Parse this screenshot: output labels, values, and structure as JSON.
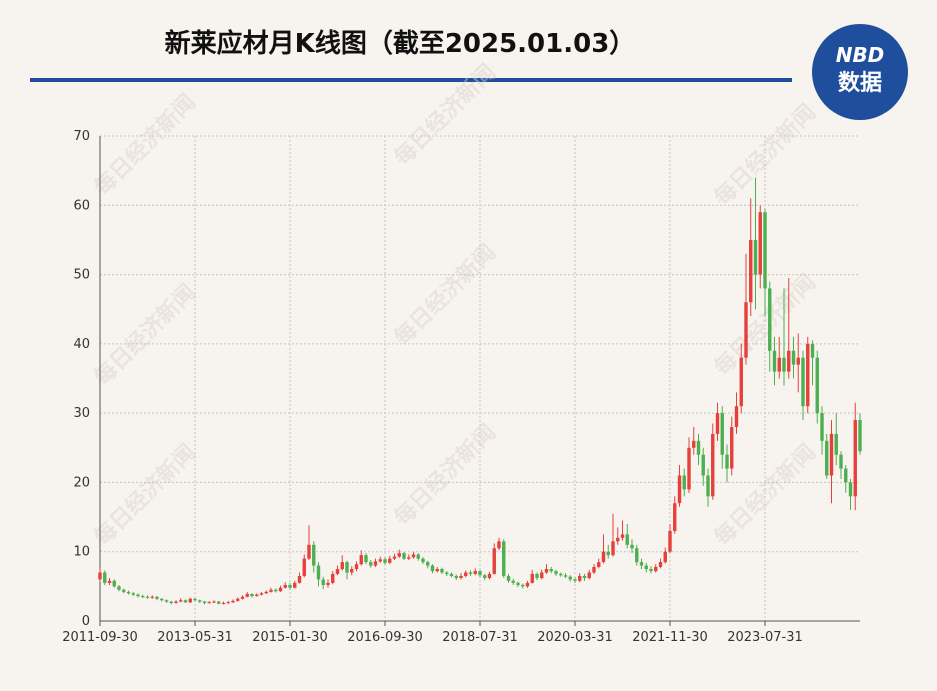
{
  "chart_data": {
    "type": "candlestick",
    "title": "新莱应材月K线图（截至2025.01.03）",
    "logo": {
      "top": "NBD",
      "bottom": "数据"
    },
    "watermark": "每日经济新闻",
    "up_color": "#e5403c",
    "down_color": "#4caf50",
    "grid": true,
    "ylim": [
      0,
      70
    ],
    "yticks": [
      0,
      10,
      20,
      30,
      40,
      50,
      60,
      70
    ],
    "categories": [
      "2011-09-30",
      null,
      null,
      null,
      null,
      null,
      null,
      null,
      null,
      null,
      null,
      null,
      null,
      null,
      null,
      null,
      null,
      null,
      null,
      null,
      "2013-05-31",
      null,
      null,
      null,
      null,
      null,
      null,
      null,
      null,
      null,
      null,
      null,
      null,
      null,
      null,
      null,
      null,
      null,
      null,
      null,
      "2015-01-30",
      null,
      null,
      null,
      null,
      null,
      null,
      null,
      null,
      null,
      null,
      null,
      null,
      null,
      null,
      null,
      null,
      null,
      null,
      null,
      "2016-09-30",
      null,
      null,
      null,
      null,
      null,
      null,
      null,
      null,
      null,
      null,
      null,
      null,
      null,
      null,
      null,
      null,
      null,
      null,
      null,
      "2018-07-31",
      null,
      null,
      null,
      null,
      null,
      null,
      null,
      null,
      null,
      null,
      null,
      null,
      null,
      null,
      null,
      null,
      null,
      null,
      null,
      "2020-03-31",
      null,
      null,
      null,
      null,
      null,
      null,
      null,
      null,
      null,
      null,
      null,
      null,
      null,
      null,
      null,
      null,
      null,
      null,
      null,
      "2021-11-30",
      null,
      null,
      null,
      null,
      null,
      null,
      null,
      null,
      null,
      null,
      null,
      null,
      null,
      null,
      null,
      null,
      null,
      null,
      null,
      "2023-07-31",
      null,
      null,
      null,
      null,
      null,
      null,
      null,
      null,
      null,
      null,
      null,
      null,
      null,
      null,
      null,
      null,
      null,
      null,
      null,
      null
    ],
    "open": [
      6,
      7,
      5.5,
      5.8,
      5,
      4.5,
      4.2,
      4,
      3.8,
      3.6,
      3.5,
      3.4,
      3.5,
      3.2,
      3,
      2.8,
      2.6,
      2.8,
      3,
      2.7,
      3.2,
      3,
      2.8,
      2.6,
      2.7,
      2.8,
      2.5,
      2.6,
      2.7,
      2.9,
      3.2,
      3.5,
      3.9,
      3.6,
      3.8,
      4,
      4.2,
      4.5,
      4.3,
      4.8,
      5.2,
      4.8,
      5.5,
      6.5,
      9,
      11,
      8,
      6,
      5.2,
      5.5,
      6.8,
      7.5,
      8.5,
      7,
      7.5,
      8.2,
      9.5,
      8.5,
      8,
      8.6,
      8.9,
      8.4,
      9,
      9.3,
      9.8,
      9,
      9.2,
      9.6,
      9,
      8.5,
      8,
      7.2,
      7.5,
      7,
      6.8,
      6.5,
      6.2,
      6.5,
      7,
      6.8,
      7.2,
      6.6,
      6.2,
      6.8,
      10.5,
      11.5,
      6.5,
      5.8,
      5.5,
      5.2,
      5,
      5.5,
      6.8,
      6.2,
      7,
      7.5,
      7.2,
      6.8,
      6.6,
      6.4,
      6,
      5.8,
      6.5,
      6.2,
      7,
      7.8,
      8.5,
      10,
      9.5,
      11.5,
      12,
      12.5,
      11,
      10.5,
      8.5,
      8,
      7.5,
      7.2,
      7.8,
      8.5,
      10,
      13,
      17,
      21,
      19,
      25,
      26,
      24,
      21,
      18,
      27,
      30,
      24,
      22,
      28,
      31,
      38,
      46,
      55,
      50,
      59,
      48,
      39,
      36,
      38,
      36,
      39,
      37,
      38,
      31,
      40,
      38,
      30,
      26,
      21,
      27,
      24,
      22,
      20,
      18,
      29
    ],
    "close": [
      7,
      5.5,
      5.8,
      5,
      4.5,
      4.2,
      4,
      3.8,
      3.6,
      3.5,
      3.4,
      3.5,
      3.2,
      3,
      2.8,
      2.6,
      2.8,
      3,
      2.7,
      3.2,
      3,
      2.8,
      2.6,
      2.7,
      2.8,
      2.5,
      2.6,
      2.7,
      2.9,
      3.2,
      3.5,
      3.9,
      3.6,
      3.8,
      4,
      4.2,
      4.5,
      4.3,
      4.8,
      5.2,
      4.8,
      5.5,
      6.5,
      9,
      11,
      8,
      6,
      5.2,
      5.5,
      6.8,
      7.5,
      8.5,
      7,
      7.5,
      8.2,
      9.5,
      8.5,
      8,
      8.6,
      8.9,
      8.4,
      9,
      9.3,
      9.8,
      9,
      9.2,
      9.6,
      9,
      8.5,
      8,
      7.2,
      7.5,
      7,
      6.8,
      6.5,
      6.2,
      6.5,
      7,
      6.8,
      7.2,
      6.6,
      6.2,
      6.8,
      10.5,
      11.5,
      6.5,
      5.8,
      5.5,
      5.2,
      5,
      5.5,
      6.8,
      6.2,
      7,
      7.5,
      7.2,
      6.8,
      6.6,
      6.4,
      6,
      5.8,
      6.5,
      6.2,
      7,
      7.8,
      8.5,
      10,
      9.5,
      11.5,
      12,
      12.5,
      11,
      10.5,
      8.5,
      8,
      7.5,
      7.2,
      7.8,
      8.5,
      10,
      13,
      17,
      21,
      19,
      25,
      26,
      24,
      21,
      18,
      27,
      30,
      24,
      22,
      28,
      31,
      38,
      46,
      55,
      50,
      59,
      48,
      39,
      36,
      38,
      36,
      39,
      37,
      38,
      31,
      40,
      38,
      30,
      26,
      21,
      27,
      24,
      22,
      20,
      18,
      29,
      24.5
    ],
    "high": [
      7.6,
      7.3,
      6.2,
      6,
      5.2,
      4.7,
      4.4,
      4.2,
      4,
      3.8,
      3.7,
      3.7,
      3.6,
      3.3,
      3.1,
      2.9,
      3,
      3.3,
      3.1,
      3.4,
      3.3,
      3.1,
      2.9,
      2.9,
      3,
      2.9,
      2.8,
      2.9,
      3.1,
      3.4,
      3.7,
      4.2,
      4,
      4,
      4.2,
      4.4,
      4.8,
      4.7,
      5.1,
      5.6,
      5.5,
      5.8,
      7,
      9.6,
      13.8,
      11.5,
      8.5,
      6.4,
      6,
      7.2,
      8,
      9.5,
      8.7,
      7.9,
      8.6,
      10.2,
      9.8,
      8.8,
      9,
      9.3,
      9.2,
      9.4,
      9.7,
      10.3,
      10,
      9.6,
      10,
      9.8,
      9.2,
      8.7,
      8.2,
      7.8,
      7.7,
      7.2,
      7,
      6.7,
      6.9,
      7.3,
      7.3,
      7.6,
      7.4,
      6.8,
      7.1,
      11.2,
      12,
      11.8,
      6.8,
      6.1,
      5.7,
      5.4,
      5.8,
      7.4,
      7,
      7.4,
      8.2,
      7.8,
      7.4,
      7,
      6.9,
      6.6,
      6.3,
      6.9,
      6.8,
      7.4,
      8.2,
      9,
      12.5,
      11,
      15.5,
      13.5,
      14.5,
      14,
      11.8,
      11,
      9,
      8.4,
      7.9,
      8.2,
      9,
      10.6,
      14,
      18,
      22.5,
      22,
      26.5,
      28,
      27,
      25,
      22,
      28.5,
      31.5,
      31,
      25.5,
      29.5,
      33,
      40,
      53,
      61,
      64,
      60,
      59.5,
      49,
      41,
      41,
      48,
      49.5,
      41,
      41.5,
      39,
      41,
      40.5,
      39,
      31,
      27,
      29,
      30,
      24.5,
      22.5,
      20.5,
      31.5,
      30
    ],
    "low": [
      5.6,
      5.2,
      5.2,
      4.8,
      4.3,
      4,
      3.8,
      3.6,
      3.4,
      3.3,
      3.2,
      3.2,
      3,
      2.8,
      2.6,
      2.4,
      2.5,
      2.7,
      2.6,
      2.6,
      2.8,
      2.6,
      2.4,
      2.5,
      2.6,
      2.4,
      2.4,
      2.5,
      2.6,
      2.8,
      3.1,
      3.4,
      3.4,
      3.5,
      3.7,
      3.9,
      4.1,
      4.1,
      4.2,
      4.7,
      4.5,
      4.7,
      5.4,
      6.3,
      8.8,
      7,
      5,
      4.6,
      4.8,
      5.3,
      6.6,
      7.3,
      6,
      6.6,
      7.2,
      8,
      8.2,
      7.7,
      7.8,
      8.4,
      8.1,
      8.2,
      8.8,
      9.1,
      8.8,
      8.8,
      9,
      8.7,
      8.2,
      7.6,
      6.9,
      7,
      6.8,
      6.5,
      6.3,
      5.9,
      6,
      6.3,
      6.5,
      6.6,
      6.3,
      5.9,
      6,
      6.7,
      10.2,
      6.2,
      5.5,
      5.2,
      4.9,
      4.7,
      4.8,
      5.4,
      5.9,
      6,
      6.8,
      6.9,
      6.5,
      6.4,
      6.2,
      5.7,
      5.5,
      5.6,
      5.8,
      6,
      6.8,
      7.6,
      8.3,
      9,
      9.3,
      11,
      11.6,
      10.5,
      9.8,
      8,
      7.5,
      7,
      6.9,
      7,
      7.6,
      8.3,
      9.8,
      12.6,
      16.5,
      18,
      18.5,
      24,
      22.5,
      19.5,
      16.5,
      17.5,
      26,
      22,
      20,
      21,
      27,
      30,
      37,
      44,
      45,
      48,
      44,
      36,
      34,
      35,
      34,
      35,
      35,
      33,
      29,
      30,
      34,
      28.5,
      24,
      20.5,
      17,
      22.5,
      20.5,
      18.5,
      16,
      16,
      24
    ]
  }
}
